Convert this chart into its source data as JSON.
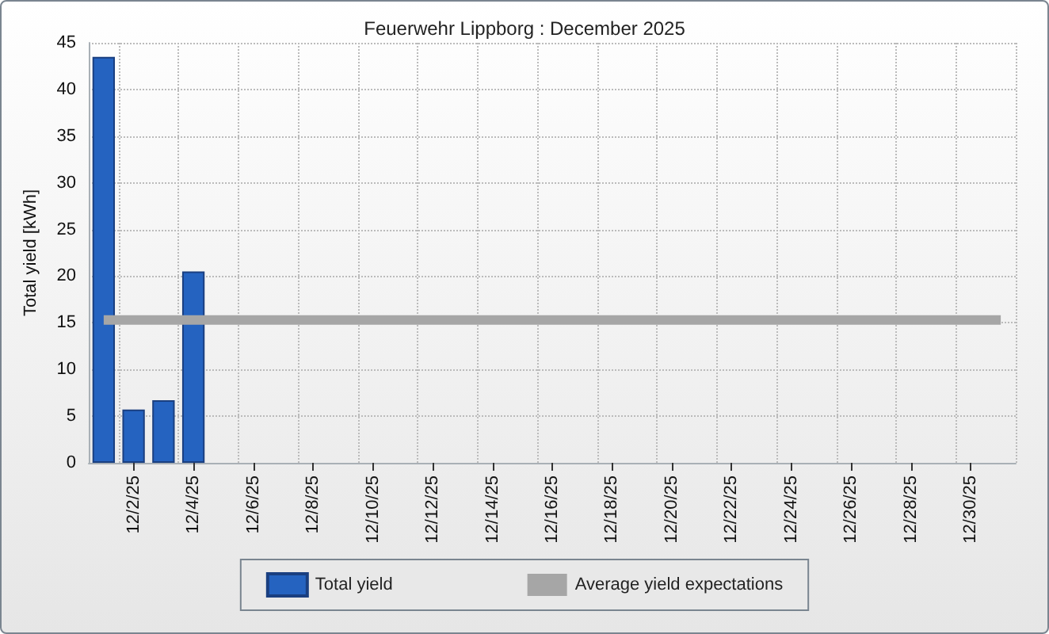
{
  "chart_data": {
    "type": "bar",
    "title": "Feuerwehr Lippborg : December 2025",
    "ylabel": "Total yield [kWh]",
    "categories": [
      null,
      "12/2/25",
      null,
      "12/4/25",
      null,
      "12/6/25",
      null,
      "12/8/25",
      null,
      "12/10/25",
      null,
      "12/12/25",
      null,
      "12/14/25",
      null,
      "12/16/25",
      null,
      "12/18/25",
      null,
      "12/20/25",
      null,
      "12/22/25",
      null,
      "12/24/25",
      null,
      "12/26/25",
      null,
      "12/28/25",
      null,
      "12/30/25",
      null
    ],
    "series": [
      {
        "name": "Total yield",
        "color": "#2563c0",
        "values": [
          43.5,
          5.7,
          6.7,
          20.5,
          null,
          null,
          null,
          null,
          null,
          null,
          null,
          null,
          null,
          null,
          null,
          null,
          null,
          null,
          null,
          null,
          null,
          null,
          null,
          null,
          null,
          null,
          null,
          null,
          null,
          null,
          null
        ]
      },
      {
        "name": "Average yield expectations",
        "type": "line",
        "color": "#a6a6a6",
        "values": [
          15.3,
          15.3,
          15.3,
          15.3,
          15.3,
          15.3,
          15.3,
          15.3,
          15.3,
          15.3,
          15.3,
          15.3,
          15.3,
          15.3,
          15.3,
          15.3,
          15.3,
          15.3,
          15.3,
          15.3,
          15.3,
          15.3,
          15.3,
          15.3,
          15.3,
          15.3,
          15.3,
          15.3,
          15.3,
          15.3,
          15.3
        ]
      }
    ],
    "ylim": [
      0,
      45
    ],
    "yticks": [
      0,
      5,
      10,
      15,
      20,
      25,
      30,
      35,
      40,
      45
    ],
    "grid": true,
    "legend": "bottom",
    "marker": "none"
  }
}
